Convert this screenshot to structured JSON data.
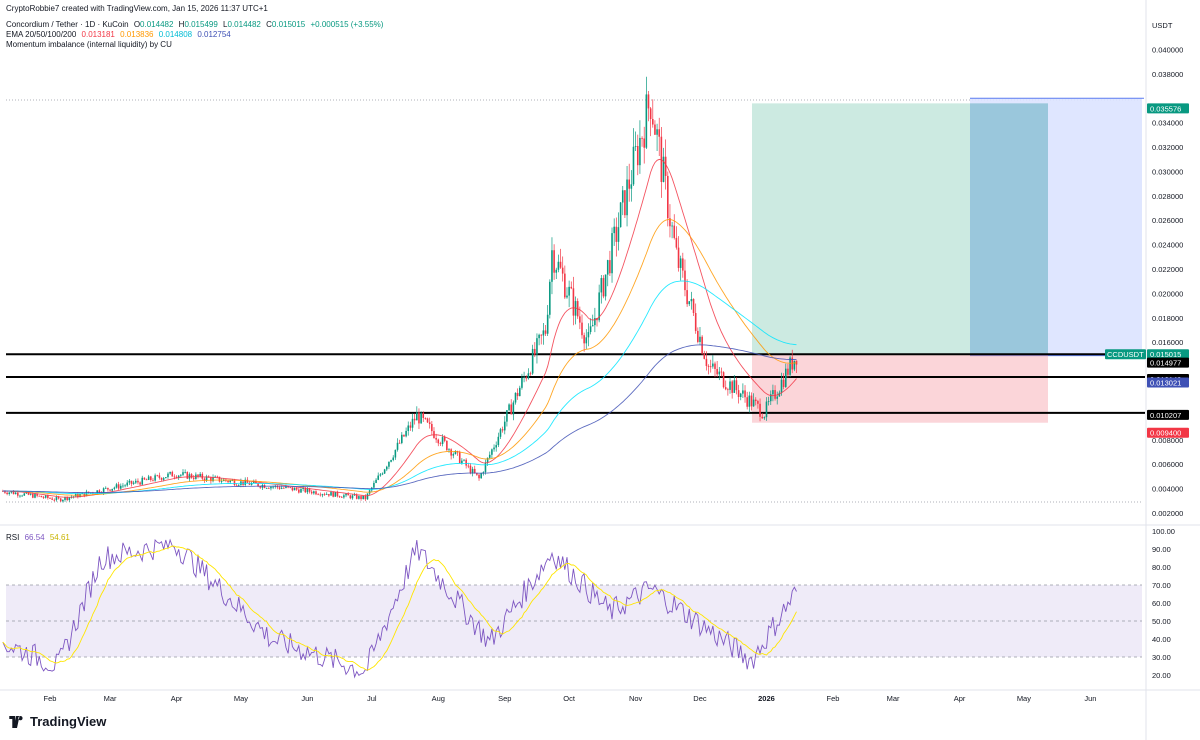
{
  "attribution": "CryptoRobbie7 created with TradingView.com, Jan 15, 2026 11:37 UTC+1",
  "legend": {
    "symbol": "Concordium / Tether · 1D · KuCoin",
    "ohlc": {
      "O": "0.014482",
      "H": "0.015499",
      "L": "0.014482",
      "C": "0.015015",
      "change": "+0.000515 (+3.55%)"
    },
    "ema_label": "EMA 20/50/100/200",
    "ema_values": [
      "0.013181",
      "0.013836",
      "0.014808",
      "0.012754"
    ],
    "indicator": "Momentum imbalance (internal liquidity) by CU"
  },
  "rsi_legend": {
    "label": "RSI",
    "value": "66.54",
    "ma": "54.61"
  },
  "currency": "USDT",
  "branding": "TradingView",
  "colors": {
    "up": "#089981",
    "down": "#f23645",
    "ema20": "#f23645",
    "ema50": "#ff9800",
    "ema100": "#00e5ff",
    "ema200": "#3f51b5",
    "rsi": "#7e57c2",
    "rsi_ma": "#ffe600"
  },
  "chart_data": [
    {
      "type": "candlestick",
      "title": "Concordium / Tether · 1D · KuCoin",
      "x_ticks": [
        "Feb",
        "Mar",
        "Apr",
        "May",
        "Jun",
        "Jul",
        "Aug",
        "Sep",
        "Oct",
        "Nov",
        "Dec",
        "2026",
        "Feb",
        "Mar",
        "Apr",
        "May",
        "Jun"
      ],
      "y_ticks": [
        "0.040000",
        "0.038000",
        "0.034000",
        "0.032000",
        "0.030000",
        "0.028000",
        "0.026000",
        "0.024000",
        "0.022000",
        "0.020000",
        "0.018000",
        "0.016000",
        "0.008000",
        "0.006000",
        "0.004000",
        "0.002000"
      ],
      "ylim": [
        0.0016,
        0.0415
      ],
      "horizontal_levels": [
        0.015015,
        0.013148,
        0.010207
      ],
      "price_labels": [
        {
          "text": "0.035576",
          "value": 0.035576,
          "kind": "target"
        },
        {
          "text": "CCDUSDT",
          "value": 0.015015,
          "kind": "last"
        },
        {
          "text": "0.015015",
          "value": 0.015015,
          "kind": "last"
        },
        {
          "text": "0.014977",
          "value": 0.014977,
          "kind": "entry"
        },
        {
          "text": "0.013148",
          "value": 0.013148,
          "kind": "level"
        },
        {
          "text": "0.013021",
          "value": 0.013021,
          "kind": "ema"
        },
        {
          "text": "0.010207",
          "value": 0.010207,
          "kind": "level"
        },
        {
          "text": "0.009400",
          "value": 0.0094,
          "kind": "stop"
        }
      ],
      "position": {
        "entry": 0.014977,
        "target": 0.035576,
        "stop": 0.0094
      },
      "projection_box": {
        "top": 0.036,
        "bottom": 0.0149
      },
      "key_points": [
        {
          "date": "2025-01-10",
          "close": 0.0038
        },
        {
          "date": "2025-02-05",
          "close": 0.0031
        },
        {
          "date": "2025-03-31",
          "close": 0.0052
        },
        {
          "date": "2025-06-28",
          "close": 0.0032
        },
        {
          "date": "2025-07-22",
          "close": 0.01
        },
        {
          "date": "2025-08-20",
          "close": 0.0048
        },
        {
          "date": "2025-09-20",
          "close": 0.017
        },
        {
          "date": "2025-09-23",
          "close": 0.0235
        },
        {
          "date": "2025-10-10",
          "close": 0.016
        },
        {
          "date": "2025-11-08",
          "close": 0.036
        },
        {
          "date": "2025-11-20",
          "close": 0.023
        },
        {
          "date": "2025-12-05",
          "close": 0.014
        },
        {
          "date": "2025-12-31",
          "close": 0.0102
        },
        {
          "date": "2026-01-15",
          "close": 0.015
        }
      ]
    },
    {
      "type": "line",
      "title": "RSI",
      "y_ticks": [
        "100.00",
        "90.00",
        "80.00",
        "70.00",
        "60.00",
        "50.00",
        "40.00",
        "30.00",
        "20.00"
      ],
      "ylim": [
        15,
        100
      ],
      "band": [
        30,
        70
      ],
      "series": [
        {
          "name": "RSI",
          "last": 66.54
        },
        {
          "name": "RSI MA",
          "last": 54.61
        }
      ],
      "key_points": [
        {
          "date": "2025-01-10",
          "rsi": 38
        },
        {
          "date": "2025-02-05",
          "rsi": 25
        },
        {
          "date": "2025-02-25",
          "rsi": 85
        },
        {
          "date": "2025-03-31",
          "rsi": 93
        },
        {
          "date": "2025-05-15",
          "rsi": 40
        },
        {
          "date": "2025-06-28",
          "rsi": 22
        },
        {
          "date": "2025-07-22",
          "rsi": 90
        },
        {
          "date": "2025-08-25",
          "rsi": 38
        },
        {
          "date": "2025-09-23",
          "rsi": 88
        },
        {
          "date": "2025-10-20",
          "rsi": 55
        },
        {
          "date": "2025-11-08",
          "rsi": 68
        },
        {
          "date": "2025-12-25",
          "rsi": 28
        },
        {
          "date": "2026-01-15",
          "rsi": 66.54
        }
      ]
    }
  ]
}
